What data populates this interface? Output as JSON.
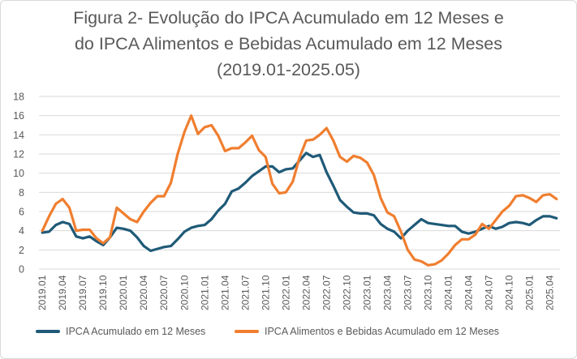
{
  "chart_data": {
    "type": "line",
    "title_lines": [
      "Figura 2- Evolução do IPCA Acumulado em 12 Meses e",
      "do IPCA Alimentos e Bebidas Acumulado em 12 Meses",
      "(2019.01-2025.05)"
    ],
    "xlabel": "",
    "ylabel": "",
    "ylim": [
      0,
      18
    ],
    "yticks": [
      0,
      2,
      4,
      6,
      8,
      10,
      12,
      14,
      16,
      18
    ],
    "grid": true,
    "legend_position": "bottom",
    "x_tick_labels": [
      "2019.01",
      "2019.04",
      "2019.07",
      "2019.10",
      "2020.01",
      "2020.04",
      "2020.07",
      "2020.10",
      "2021.01",
      "2021.04",
      "2021.07",
      "2021.10",
      "2022.01",
      "2022.04",
      "2022.07",
      "2022.10",
      "2023.01",
      "2023.04",
      "2023.07",
      "2023.10",
      "2024.01",
      "2024.04",
      "2024.07",
      "2024.10",
      "2025.01",
      "2025.04"
    ],
    "series": [
      {
        "name": "IPCA Acumulado em 12 Meses",
        "color": "#1f5a78",
        "values": [
          3.8,
          3.9,
          4.6,
          4.9,
          4.7,
          3.4,
          3.2,
          3.4,
          2.9,
          2.5,
          3.3,
          4.3,
          4.2,
          4.0,
          3.3,
          2.4,
          1.9,
          2.1,
          2.3,
          2.4,
          3.1,
          3.9,
          4.3,
          4.5,
          4.6,
          5.2,
          6.1,
          6.8,
          8.1,
          8.4,
          9.0,
          9.7,
          10.2,
          10.7,
          10.7,
          10.1,
          10.4,
          10.5,
          11.3,
          12.1,
          11.7,
          11.9,
          10.1,
          8.7,
          7.2,
          6.5,
          5.9,
          5.8,
          5.8,
          5.6,
          4.7,
          4.2,
          3.9,
          3.2,
          4.0,
          4.6,
          5.2,
          4.8,
          4.7,
          4.6,
          4.5,
          4.5,
          3.9,
          3.7,
          3.9,
          4.2,
          4.5,
          4.2,
          4.4,
          4.8,
          4.9,
          4.8,
          4.6,
          5.1,
          5.5,
          5.5,
          5.3
        ]
      },
      {
        "name": "IPCA Alimentos e Bebidas Acumulado em 12 Meses",
        "color": "#f07e2f",
        "values": [
          4.0,
          5.5,
          6.8,
          7.3,
          6.4,
          4.0,
          4.1,
          4.1,
          3.2,
          2.7,
          3.3,
          6.4,
          5.8,
          5.2,
          4.9,
          6.0,
          6.9,
          7.6,
          7.6,
          9.0,
          12.0,
          14.3,
          16.0,
          14.1,
          14.8,
          15.0,
          13.9,
          12.3,
          12.6,
          12.6,
          13.2,
          13.9,
          12.4,
          11.7,
          8.9,
          7.9,
          8.0,
          9.1,
          11.6,
          13.4,
          13.5,
          14.0,
          14.7,
          13.4,
          11.7,
          11.2,
          11.8,
          11.6,
          11.1,
          9.8,
          7.4,
          5.9,
          5.5,
          3.9,
          2.0,
          1.0,
          0.8,
          0.4,
          0.5,
          0.9,
          1.6,
          2.5,
          3.1,
          3.1,
          3.6,
          4.7,
          4.2,
          5.1,
          6.0,
          6.6,
          7.6,
          7.7,
          7.4,
          7.0,
          7.7,
          7.8,
          7.3
        ]
      }
    ]
  }
}
